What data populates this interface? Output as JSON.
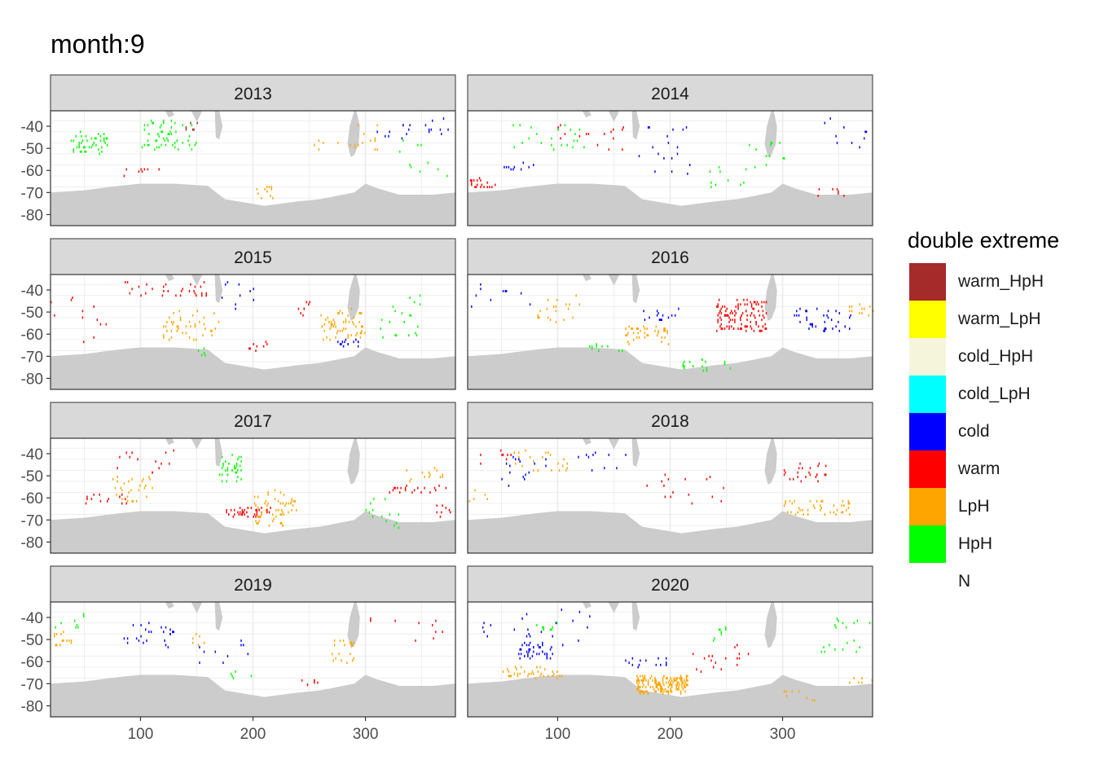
{
  "title": "month:9",
  "chart_data": {
    "type": "heatmap",
    "facet_by": "year",
    "facets": [
      "2013",
      "2014",
      "2015",
      "2016",
      "2017",
      "2018",
      "2019",
      "2020"
    ],
    "x_ticks": [
      100,
      200,
      300
    ],
    "x_tick_labels": [
      "100",
      "200",
      "300"
    ],
    "y_ticks": [
      -40,
      -50,
      -60,
      -70,
      -80
    ],
    "y_tick_labels": [
      "-40",
      "-50",
      "-60",
      "-70",
      "-80"
    ],
    "xlim": [
      20,
      380
    ],
    "ylim": [
      -85,
      -33
    ],
    "grid": true,
    "legend": {
      "title": "double extreme",
      "position": "right",
      "entries": [
        {
          "label": "warm_HpH",
          "color": "#A52A2A"
        },
        {
          "label": "warm_LpH",
          "color": "#FFFF00"
        },
        {
          "label": "cold_HpH",
          "color": "#F5F5DC"
        },
        {
          "label": "cold_LpH",
          "color": "#00FFFF"
        },
        {
          "label": "cold",
          "color": "#0000FF"
        },
        {
          "label": "warm",
          "color": "#FF0000"
        },
        {
          "label": "LpH",
          "color": "#FFA500"
        },
        {
          "label": "HpH",
          "color": "#00FF00"
        },
        {
          "label": "N",
          "color": "#FFFFFF"
        }
      ]
    },
    "land_color": "#CCCCCC",
    "land": {
      "antarctic_coast": [
        [
          20,
          -70
        ],
        [
          50,
          -69
        ],
        [
          80,
          -67
        ],
        [
          100,
          -66
        ],
        [
          130,
          -66
        ],
        [
          160,
          -67
        ],
        [
          175,
          -73
        ],
        [
          210,
          -76
        ],
        [
          240,
          -74
        ],
        [
          260,
          -73
        ],
        [
          290,
          -70
        ],
        [
          300,
          -66
        ],
        [
          310,
          -68
        ],
        [
          330,
          -71
        ],
        [
          360,
          -71
        ],
        [
          380,
          -70
        ]
      ],
      "south_america_tip": [
        [
          290,
          -33
        ],
        [
          292,
          -33
        ],
        [
          295,
          -40
        ],
        [
          294,
          -48
        ],
        [
          290,
          -53
        ],
        [
          287,
          -54
        ],
        [
          284,
          -48
        ],
        [
          286,
          -40
        ]
      ],
      "africa_tip": [
        [
          122,
          -33
        ],
        [
          128,
          -33
        ],
        [
          130,
          -35
        ],
        [
          125,
          -36
        ]
      ],
      "australia_tip": [
        [
          145,
          -33
        ],
        [
          155,
          -33
        ],
        [
          150,
          -38
        ]
      ],
      "new_zealand": [
        [
          166,
          -33
        ],
        [
          170,
          -33
        ],
        [
          173,
          -40
        ],
        [
          170,
          -46
        ],
        [
          167,
          -45
        ]
      ]
    },
    "patches": {
      "2013": [
        {
          "cat": "HpH",
          "x": [
            35,
            70
          ],
          "y": [
            -52,
            -42
          ],
          "n": 45,
          "seed": 11
        },
        {
          "cat": "HpH",
          "x": [
            100,
            150
          ],
          "y": [
            -50,
            -36
          ],
          "n": 55,
          "seed": 12
        },
        {
          "cat": "warm_HpH",
          "x": [
            140,
            150
          ],
          "y": [
            -42,
            -36
          ],
          "n": 6,
          "seed": 13
        },
        {
          "cat": "LpH",
          "x": [
            200,
            220
          ],
          "y": [
            -72,
            -67
          ],
          "n": 12,
          "seed": 14
        },
        {
          "cat": "LpH",
          "x": [
            250,
            300
          ],
          "y": [
            -50,
            -46
          ],
          "n": 10,
          "seed": 15
        },
        {
          "cat": "cold",
          "x": [
            310,
            340
          ],
          "y": [
            -46,
            -38
          ],
          "n": 10,
          "seed": 16
        },
        {
          "cat": "cold",
          "x": [
            350,
            375
          ],
          "y": [
            -44,
            -36
          ],
          "n": 9,
          "seed": 17
        },
        {
          "cat": "warm",
          "x": [
            80,
            120
          ],
          "y": [
            -62,
            -58
          ],
          "n": 8,
          "seed": 18
        },
        {
          "cat": "HpH",
          "x": [
            330,
            380
          ],
          "y": [
            -66,
            -46
          ],
          "n": 10,
          "seed": 19
        },
        {
          "cat": "LpH",
          "x": [
            290,
            310
          ],
          "y": [
            -52,
            -38
          ],
          "n": 8,
          "seed": 20
        }
      ],
      "2014": [
        {
          "cat": "warm",
          "x": [
            20,
            45
          ],
          "y": [
            -68,
            -63
          ],
          "n": 20,
          "seed": 21
        },
        {
          "cat": "cold",
          "x": [
            50,
            80
          ],
          "y": [
            -60,
            -56
          ],
          "n": 10,
          "seed": 22
        },
        {
          "cat": "HpH",
          "x": [
            60,
            140
          ],
          "y": [
            -50,
            -38
          ],
          "n": 22,
          "seed": 23
        },
        {
          "cat": "cold",
          "x": [
            170,
            220
          ],
          "y": [
            -62,
            -40
          ],
          "n": 18,
          "seed": 24
        },
        {
          "cat": "HpH",
          "x": [
            230,
            270
          ],
          "y": [
            -68,
            -58
          ],
          "n": 10,
          "seed": 25
        },
        {
          "cat": "HpH",
          "x": [
            270,
            310
          ],
          "y": [
            -60,
            -46
          ],
          "n": 12,
          "seed": 26
        },
        {
          "cat": "warm",
          "x": [
            100,
            160
          ],
          "y": [
            -52,
            -38
          ],
          "n": 16,
          "seed": 27
        },
        {
          "cat": "cold",
          "x": [
            320,
            380
          ],
          "y": [
            -52,
            -36
          ],
          "n": 10,
          "seed": 28
        },
        {
          "cat": "warm",
          "x": [
            330,
            355
          ],
          "y": [
            -72,
            -66
          ],
          "n": 7,
          "seed": 29
        }
      ],
      "2015": [
        {
          "cat": "LpH",
          "x": [
            120,
            170
          ],
          "y": [
            -62,
            -48
          ],
          "n": 45,
          "seed": 31
        },
        {
          "cat": "LpH",
          "x": [
            260,
            300
          ],
          "y": [
            -62,
            -48
          ],
          "n": 60,
          "seed": 32
        },
        {
          "cat": "cold",
          "x": [
            275,
            295
          ],
          "y": [
            -65,
            -61
          ],
          "n": 14,
          "seed": 33
        },
        {
          "cat": "warm",
          "x": [
            80,
            160
          ],
          "y": [
            -42,
            -36
          ],
          "n": 30,
          "seed": 34
        },
        {
          "cat": "warm",
          "x": [
            195,
            215
          ],
          "y": [
            -67,
            -63
          ],
          "n": 8,
          "seed": 35
        },
        {
          "cat": "warm",
          "x": [
            230,
            250
          ],
          "y": [
            -52,
            -44
          ],
          "n": 8,
          "seed": 36
        },
        {
          "cat": "HpH",
          "x": [
            310,
            350
          ],
          "y": [
            -62,
            -42
          ],
          "n": 20,
          "seed": 37
        },
        {
          "cat": "cold",
          "x": [
            170,
            200
          ],
          "y": [
            -48,
            -36
          ],
          "n": 10,
          "seed": 38
        },
        {
          "cat": "warm",
          "x": [
            20,
            70
          ],
          "y": [
            -66,
            -42
          ],
          "n": 12,
          "seed": 39
        },
        {
          "cat": "HpH",
          "x": [
            150,
            160
          ],
          "y": [
            -70,
            -66
          ],
          "n": 5,
          "seed": 40
        }
      ],
      "2016": [
        {
          "cat": "warm",
          "x": [
            240,
            285
          ],
          "y": [
            -58,
            -44
          ],
          "n": 120,
          "seed": 41
        },
        {
          "cat": "cold",
          "x": [
            310,
            360
          ],
          "y": [
            -58,
            -48
          ],
          "n": 40,
          "seed": 42
        },
        {
          "cat": "LpH",
          "x": [
            160,
            200
          ],
          "y": [
            -64,
            -56
          ],
          "n": 40,
          "seed": 43
        },
        {
          "cat": "LpH",
          "x": [
            80,
            120
          ],
          "y": [
            -56,
            -42
          ],
          "n": 20,
          "seed": 44
        },
        {
          "cat": "LpH",
          "x": [
            355,
            380
          ],
          "y": [
            -52,
            -46
          ],
          "n": 12,
          "seed": 45
        },
        {
          "cat": "cold",
          "x": [
            175,
            210
          ],
          "y": [
            -54,
            -46
          ],
          "n": 14,
          "seed": 46
        },
        {
          "cat": "HpH",
          "x": [
            210,
            260
          ],
          "y": [
            -76,
            -70
          ],
          "n": 18,
          "seed": 47
        },
        {
          "cat": "HpH",
          "x": [
            120,
            160
          ],
          "y": [
            -67,
            -64
          ],
          "n": 10,
          "seed": 48
        },
        {
          "cat": "cold",
          "x": [
            20,
            80
          ],
          "y": [
            -48,
            -36
          ],
          "n": 10,
          "seed": 49
        }
      ],
      "2017": [
        {
          "cat": "HpH",
          "x": [
            170,
            190
          ],
          "y": [
            -52,
            -40
          ],
          "n": 35,
          "seed": 51
        },
        {
          "cat": "warm",
          "x": [
            175,
            215
          ],
          "y": [
            -68,
            -64
          ],
          "n": 40,
          "seed": 52
        },
        {
          "cat": "LpH",
          "x": [
            200,
            240
          ],
          "y": [
            -72,
            -56
          ],
          "n": 60,
          "seed": 53
        },
        {
          "cat": "LpH",
          "x": [
            70,
            110
          ],
          "y": [
            -62,
            -50
          ],
          "n": 30,
          "seed": 54
        },
        {
          "cat": "warm",
          "x": [
            50,
            90
          ],
          "y": [
            -62,
            -58
          ],
          "n": 14,
          "seed": 55
        },
        {
          "cat": "warm",
          "x": [
            320,
            375
          ],
          "y": [
            -58,
            -54
          ],
          "n": 20,
          "seed": 56
        },
        {
          "cat": "LpH",
          "x": [
            330,
            370
          ],
          "y": [
            -52,
            -46
          ],
          "n": 14,
          "seed": 57
        },
        {
          "cat": "HpH",
          "x": [
            300,
            330
          ],
          "y": [
            -74,
            -60
          ],
          "n": 14,
          "seed": 58
        },
        {
          "cat": "warm",
          "x": [
            60,
            130
          ],
          "y": [
            -48,
            -38
          ],
          "n": 14,
          "seed": 59
        },
        {
          "cat": "warm",
          "x": [
            360,
            378
          ],
          "y": [
            -70,
            -62
          ],
          "n": 8,
          "seed": 60
        }
      ],
      "2018": [
        {
          "cat": "LpH",
          "x": [
            300,
            360
          ],
          "y": [
            -68,
            -60
          ],
          "n": 45,
          "seed": 61
        },
        {
          "cat": "warm",
          "x": [
            300,
            340
          ],
          "y": [
            -52,
            -44
          ],
          "n": 25,
          "seed": 62
        },
        {
          "cat": "LpH",
          "x": [
            60,
            110
          ],
          "y": [
            -48,
            -38
          ],
          "n": 22,
          "seed": 63
        },
        {
          "cat": "cold",
          "x": [
            50,
            90
          ],
          "y": [
            -54,
            -40
          ],
          "n": 16,
          "seed": 64
        },
        {
          "cat": "warm",
          "x": [
            170,
            250
          ],
          "y": [
            -62,
            -48
          ],
          "n": 16,
          "seed": 65
        },
        {
          "cat": "cold",
          "x": [
            110,
            160
          ],
          "y": [
            -48,
            -38
          ],
          "n": 10,
          "seed": 66
        },
        {
          "cat": "warm",
          "x": [
            20,
            60
          ],
          "y": [
            -44,
            -38
          ],
          "n": 8,
          "seed": 67
        },
        {
          "cat": "LpH",
          "x": [
            20,
            40
          ],
          "y": [
            -62,
            -56
          ],
          "n": 5,
          "seed": 68
        }
      ],
      "2019": [
        {
          "cat": "LpH",
          "x": [
            20,
            40
          ],
          "y": [
            -52,
            -46
          ],
          "n": 14,
          "seed": 71
        },
        {
          "cat": "LpH",
          "x": [
            270,
            290
          ],
          "y": [
            -60,
            -48
          ],
          "n": 20,
          "seed": 72
        },
        {
          "cat": "cold",
          "x": [
            80,
            130
          ],
          "y": [
            -54,
            -40
          ],
          "n": 25,
          "seed": 73
        },
        {
          "cat": "warm",
          "x": [
            240,
            260
          ],
          "y": [
            -70,
            -67
          ],
          "n": 6,
          "seed": 74
        },
        {
          "cat": "HpH",
          "x": [
            20,
            60
          ],
          "y": [
            -44,
            -38
          ],
          "n": 8,
          "seed": 75
        },
        {
          "cat": "LpH",
          "x": [
            140,
            160
          ],
          "y": [
            -52,
            -46
          ],
          "n": 6,
          "seed": 76
        },
        {
          "cat": "cold",
          "x": [
            150,
            200
          ],
          "y": [
            -60,
            -50
          ],
          "n": 10,
          "seed": 77
        },
        {
          "cat": "HpH",
          "x": [
            170,
            200
          ],
          "y": [
            -68,
            -62
          ],
          "n": 5,
          "seed": 78
        },
        {
          "cat": "warm",
          "x": [
            300,
            370
          ],
          "y": [
            -50,
            -40
          ],
          "n": 10,
          "seed": 79
        }
      ],
      "2020": [
        {
          "cat": "LpH",
          "x": [
            170,
            215
          ],
          "y": [
            -74,
            -66
          ],
          "n": 160,
          "seed": 81
        },
        {
          "cat": "cold",
          "x": [
            65,
            95
          ],
          "y": [
            -58,
            -51
          ],
          "n": 40,
          "seed": 82
        },
        {
          "cat": "LpH",
          "x": [
            50,
            110
          ],
          "y": [
            -67,
            -62
          ],
          "n": 35,
          "seed": 83
        },
        {
          "cat": "cold",
          "x": [
            160,
            200
          ],
          "y": [
            -62,
            -58
          ],
          "n": 15,
          "seed": 84
        },
        {
          "cat": "HpH",
          "x": [
            80,
            100
          ],
          "y": [
            -46,
            -42
          ],
          "n": 8,
          "seed": 85
        },
        {
          "cat": "cold",
          "x": [
            60,
            130
          ],
          "y": [
            -52,
            -36
          ],
          "n": 18,
          "seed": 86
        },
        {
          "cat": "HpH",
          "x": [
            330,
            380
          ],
          "y": [
            -56,
            -40
          ],
          "n": 20,
          "seed": 87
        },
        {
          "cat": "HpH",
          "x": [
            235,
            250
          ],
          "y": [
            -50,
            -44
          ],
          "n": 8,
          "seed": 88
        },
        {
          "cat": "warm",
          "x": [
            220,
            270
          ],
          "y": [
            -66,
            -52
          ],
          "n": 18,
          "seed": 89
        },
        {
          "cat": "LpH",
          "x": [
            300,
            330
          ],
          "y": [
            -78,
            -72
          ],
          "n": 8,
          "seed": 90
        },
        {
          "cat": "LpH",
          "x": [
            350,
            380
          ],
          "y": [
            -70,
            -66
          ],
          "n": 6,
          "seed": 91
        },
        {
          "cat": "cold",
          "x": [
            30,
            45
          ],
          "y": [
            -48,
            -42
          ],
          "n": 5,
          "seed": 92
        }
      ]
    }
  }
}
